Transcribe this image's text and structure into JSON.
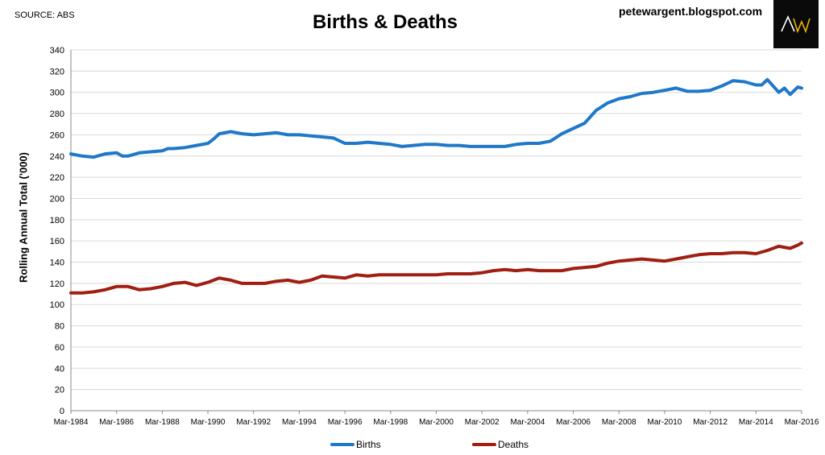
{
  "header": {
    "source": "SOURCE: ABS",
    "title": "Births & Deaths",
    "blog": "petewargent.blogspot.com",
    "logo_text": "AW"
  },
  "chart_data": {
    "type": "line",
    "title": "Births & Deaths",
    "xlabel": "",
    "ylabel": "Rolling Annual Total ('000)",
    "ylim": [
      0,
      340
    ],
    "yticks": [
      0,
      20,
      40,
      60,
      80,
      100,
      120,
      140,
      160,
      180,
      200,
      220,
      240,
      260,
      280,
      300,
      320,
      340
    ],
    "xrange": [
      "1984-03",
      "2016-03"
    ],
    "xtick_labels": [
      "Mar-1984",
      "Mar-1986",
      "Mar-1988",
      "Mar-1990",
      "Mar-1992",
      "Mar-1994",
      "Mar-1996",
      "Mar-1998",
      "Mar-2000",
      "Mar-2002",
      "Mar-2004",
      "Mar-2006",
      "Mar-2008",
      "Mar-2010",
      "Mar-2012",
      "Mar-2014",
      "Mar-2016"
    ],
    "grid": true,
    "legend_position": "bottom",
    "series": [
      {
        "name": "Births",
        "color": "#1f78c8",
        "points": [
          [
            "1984-03",
            242
          ],
          [
            "1984-09",
            240
          ],
          [
            "1985-03",
            239
          ],
          [
            "1985-09",
            242
          ],
          [
            "1986-03",
            243
          ],
          [
            "1986-06",
            240
          ],
          [
            "1986-09",
            240
          ],
          [
            "1987-03",
            243
          ],
          [
            "1987-09",
            244
          ],
          [
            "1988-03",
            245
          ],
          [
            "1988-06",
            247
          ],
          [
            "1988-09",
            247
          ],
          [
            "1989-03",
            248
          ],
          [
            "1989-09",
            250
          ],
          [
            "1990-03",
            252
          ],
          [
            "1990-06",
            256
          ],
          [
            "1990-09",
            261
          ],
          [
            "1991-03",
            263
          ],
          [
            "1991-09",
            261
          ],
          [
            "1992-03",
            260
          ],
          [
            "1992-09",
            261
          ],
          [
            "1993-03",
            262
          ],
          [
            "1993-09",
            260
          ],
          [
            "1994-03",
            260
          ],
          [
            "1994-09",
            259
          ],
          [
            "1995-03",
            258
          ],
          [
            "1995-09",
            257
          ],
          [
            "1996-03",
            252
          ],
          [
            "1996-09",
            252
          ],
          [
            "1997-03",
            253
          ],
          [
            "1997-09",
            252
          ],
          [
            "1998-03",
            251
          ],
          [
            "1998-09",
            249
          ],
          [
            "1999-03",
            250
          ],
          [
            "1999-09",
            251
          ],
          [
            "2000-03",
            251
          ],
          [
            "2000-09",
            250
          ],
          [
            "2001-03",
            250
          ],
          [
            "2001-09",
            249
          ],
          [
            "2002-03",
            249
          ],
          [
            "2002-09",
            249
          ],
          [
            "2003-03",
            249
          ],
          [
            "2003-09",
            251
          ],
          [
            "2004-03",
            252
          ],
          [
            "2004-09",
            252
          ],
          [
            "2005-03",
            254
          ],
          [
            "2005-09",
            261
          ],
          [
            "2006-03",
            266
          ],
          [
            "2006-09",
            271
          ],
          [
            "2007-03",
            283
          ],
          [
            "2007-09",
            290
          ],
          [
            "2008-03",
            294
          ],
          [
            "2008-09",
            296
          ],
          [
            "2009-03",
            299
          ],
          [
            "2009-09",
            300
          ],
          [
            "2010-03",
            302
          ],
          [
            "2010-09",
            304
          ],
          [
            "2011-03",
            301
          ],
          [
            "2011-09",
            301
          ],
          [
            "2012-03",
            302
          ],
          [
            "2012-09",
            306
          ],
          [
            "2013-03",
            311
          ],
          [
            "2013-09",
            310
          ],
          [
            "2014-03",
            307
          ],
          [
            "2014-06",
            307
          ],
          [
            "2014-09",
            312
          ],
          [
            "2015-03",
            300
          ],
          [
            "2015-06",
            304
          ],
          [
            "2015-09",
            298
          ],
          [
            "2016-01",
            305
          ],
          [
            "2016-03",
            304
          ]
        ]
      },
      {
        "name": "Deaths",
        "color": "#a01e12",
        "points": [
          [
            "1984-03",
            111
          ],
          [
            "1984-09",
            111
          ],
          [
            "1985-03",
            112
          ],
          [
            "1985-09",
            114
          ],
          [
            "1986-03",
            117
          ],
          [
            "1986-09",
            117
          ],
          [
            "1987-03",
            114
          ],
          [
            "1987-09",
            115
          ],
          [
            "1988-03",
            117
          ],
          [
            "1988-09",
            120
          ],
          [
            "1989-03",
            121
          ],
          [
            "1989-09",
            118
          ],
          [
            "1990-03",
            121
          ],
          [
            "1990-09",
            125
          ],
          [
            "1991-03",
            123
          ],
          [
            "1991-09",
            120
          ],
          [
            "1992-03",
            120
          ],
          [
            "1992-09",
            120
          ],
          [
            "1993-03",
            122
          ],
          [
            "1993-09",
            123
          ],
          [
            "1994-03",
            121
          ],
          [
            "1994-09",
            123
          ],
          [
            "1995-03",
            127
          ],
          [
            "1995-09",
            126
          ],
          [
            "1996-03",
            125
          ],
          [
            "1996-09",
            128
          ],
          [
            "1997-03",
            127
          ],
          [
            "1997-09",
            128
          ],
          [
            "1998-03",
            128
          ],
          [
            "1998-09",
            128
          ],
          [
            "1999-03",
            128
          ],
          [
            "1999-09",
            128
          ],
          [
            "2000-03",
            128
          ],
          [
            "2000-09",
            129
          ],
          [
            "2001-03",
            129
          ],
          [
            "2001-09",
            129
          ],
          [
            "2002-03",
            130
          ],
          [
            "2002-09",
            132
          ],
          [
            "2003-03",
            133
          ],
          [
            "2003-09",
            132
          ],
          [
            "2004-03",
            133
          ],
          [
            "2004-09",
            132
          ],
          [
            "2005-03",
            132
          ],
          [
            "2005-09",
            132
          ],
          [
            "2006-03",
            134
          ],
          [
            "2006-09",
            135
          ],
          [
            "2007-03",
            136
          ],
          [
            "2007-09",
            139
          ],
          [
            "2008-03",
            141
          ],
          [
            "2008-09",
            142
          ],
          [
            "2009-03",
            143
          ],
          [
            "2009-09",
            142
          ],
          [
            "2010-03",
            141
          ],
          [
            "2010-09",
            143
          ],
          [
            "2011-03",
            145
          ],
          [
            "2011-09",
            147
          ],
          [
            "2012-03",
            148
          ],
          [
            "2012-09",
            148
          ],
          [
            "2013-03",
            149
          ],
          [
            "2013-09",
            149
          ],
          [
            "2014-03",
            148
          ],
          [
            "2014-09",
            151
          ],
          [
            "2015-03",
            155
          ],
          [
            "2015-06",
            154
          ],
          [
            "2015-09",
            153
          ],
          [
            "2016-01",
            156
          ],
          [
            "2016-03",
            158
          ]
        ]
      }
    ]
  }
}
